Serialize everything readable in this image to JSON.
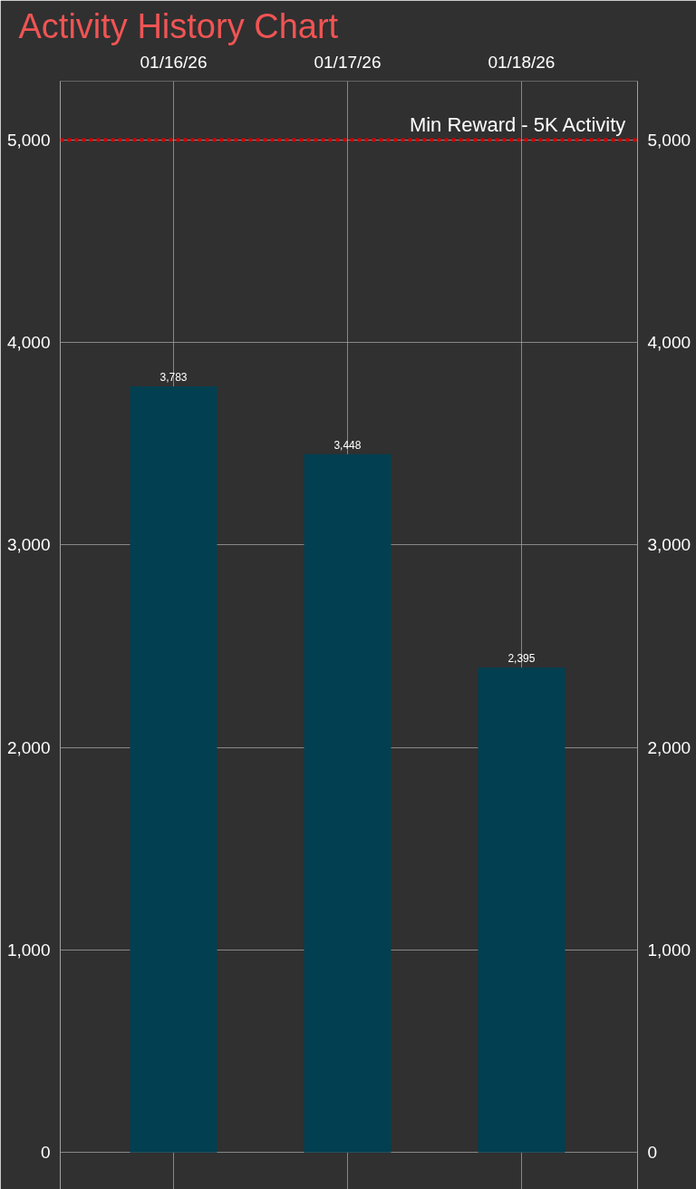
{
  "chart_data": {
    "type": "bar",
    "title": "Activity History Chart",
    "categories": [
      "01/16/26",
      "01/17/26",
      "01/18/26"
    ],
    "values": [
      3783,
      3448,
      2395
    ],
    "color": "#023f50",
    "ylim": [
      -183,
      5290
    ],
    "yticks": [
      {
        "value": 0,
        "label": "0"
      },
      {
        "value": 1000,
        "label": "1,000"
      },
      {
        "value": 2000,
        "label": "2,000"
      },
      {
        "value": 3000,
        "label": "3,000"
      },
      {
        "value": 4000,
        "label": "4,000"
      },
      {
        "value": 5000,
        "label": "5,000"
      }
    ],
    "y2lim": [
      -183,
      5290
    ],
    "y2ticks": [
      {
        "value": 0,
        "label": "0"
      },
      {
        "value": 1000,
        "label": "1,000"
      },
      {
        "value": 2000,
        "label": "2,000"
      },
      {
        "value": 3000,
        "label": "3,000"
      },
      {
        "value": 4000,
        "label": "4,000"
      },
      {
        "value": 5000,
        "label": "5,000"
      }
    ],
    "ref_lines": [
      {
        "axis": "y",
        "value": 5000,
        "label": "Min Reward - 5K Activity",
        "color": "#d40000",
        "line_style": "dotted"
      }
    ],
    "value_labels": [
      "3,783",
      "3,448",
      "2,395"
    ],
    "grid": true
  }
}
